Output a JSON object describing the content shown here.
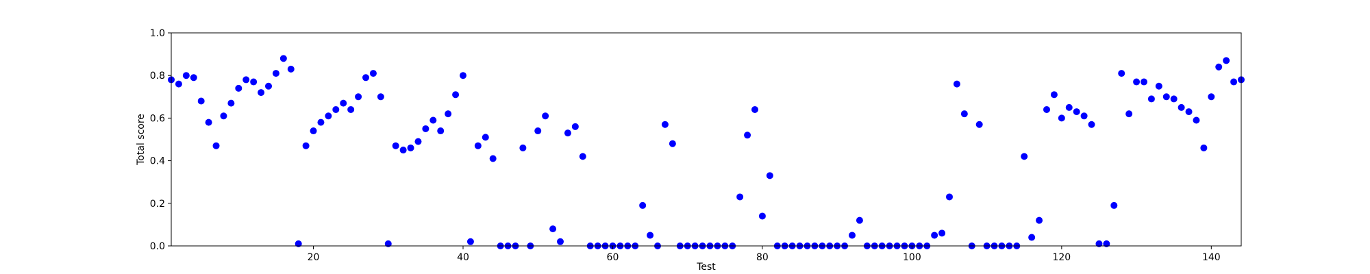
{
  "chart_data": {
    "type": "scatter",
    "xlabel": "Test",
    "ylabel": "Total score",
    "xlim": [
      1,
      144
    ],
    "ylim": [
      0.0,
      1.0
    ],
    "x_ticks": [
      20,
      40,
      60,
      80,
      100,
      120,
      140
    ],
    "x_tick_labels": [
      "20",
      "40",
      "60",
      "80",
      "100",
      "120",
      "140"
    ],
    "y_ticks": [
      0.0,
      0.2,
      0.4,
      0.6,
      0.8,
      1.0
    ],
    "y_tick_labels": [
      "0.0",
      "0.2",
      "0.4",
      "0.6",
      "0.8",
      "1.0"
    ],
    "grid": false,
    "marker_color": "#0000ff",
    "series": [
      {
        "x": [
          1,
          2,
          3,
          4,
          5,
          6,
          7,
          8,
          9,
          10,
          11,
          12,
          13,
          14,
          15,
          16,
          17,
          18,
          19,
          20,
          21,
          22,
          23,
          24,
          25,
          26,
          27,
          28,
          29,
          30,
          31,
          32,
          33,
          34,
          35,
          36,
          37,
          38,
          39,
          40,
          41,
          42,
          43,
          44,
          45,
          46,
          47,
          48,
          49,
          50,
          51,
          52,
          53,
          54,
          55,
          56,
          57,
          58,
          59,
          60,
          61,
          62,
          63,
          64,
          65,
          66,
          67,
          68,
          69,
          70,
          71,
          72,
          73,
          74,
          75,
          76,
          77,
          78,
          79,
          80,
          81,
          82,
          83,
          84,
          85,
          86,
          87,
          88,
          89,
          90,
          91,
          92,
          93,
          94,
          95,
          96,
          97,
          98,
          99,
          100,
          101,
          102,
          103,
          104,
          105,
          106,
          107,
          108,
          109,
          110,
          111,
          112,
          113,
          114,
          115,
          116,
          117,
          118,
          119,
          120,
          121,
          122,
          123,
          124,
          125,
          126,
          127,
          128,
          129,
          130,
          131,
          132,
          133,
          134,
          135,
          136,
          137,
          138,
          139,
          140,
          141,
          142,
          143,
          144
        ],
        "y": [
          0.78,
          0.76,
          0.8,
          0.79,
          0.68,
          0.58,
          0.47,
          0.61,
          0.67,
          0.74,
          0.78,
          0.77,
          0.72,
          0.75,
          0.81,
          0.88,
          0.83,
          0.01,
          0.47,
          0.54,
          0.58,
          0.61,
          0.64,
          0.67,
          0.64,
          0.7,
          0.79,
          0.81,
          0.7,
          0.01,
          0.47,
          0.45,
          0.46,
          0.49,
          0.55,
          0.59,
          0.54,
          0.62,
          0.71,
          0.8,
          0.02,
          0.47,
          0.51,
          0.41,
          0.0,
          0.0,
          0.0,
          0.46,
          0.0,
          0.54,
          0.61,
          0.08,
          0.02,
          0.53,
          0.56,
          0.42,
          0.0,
          0.0,
          0.0,
          0.0,
          0.0,
          0.0,
          0.0,
          0.19,
          0.05,
          0.0,
          0.57,
          0.48,
          0.0,
          0.0,
          0.0,
          0.0,
          0.0,
          0.0,
          0.0,
          0.0,
          0.23,
          0.52,
          0.64,
          0.14,
          0.33,
          0.0,
          0.0,
          0.0,
          0.0,
          0.0,
          0.0,
          0.0,
          0.0,
          0.0,
          0.0,
          0.05,
          0.12,
          0.0,
          0.0,
          0.0,
          0.0,
          0.0,
          0.0,
          0.0,
          0.0,
          0.0,
          0.05,
          0.06,
          0.23,
          0.76,
          0.62,
          0.0,
          0.57,
          0.0,
          0.0,
          0.0,
          0.0,
          0.0,
          0.42,
          0.04,
          0.12,
          0.64,
          0.71,
          0.6,
          0.65,
          0.63,
          0.61,
          0.57,
          0.01,
          0.01,
          0.19,
          0.81,
          0.62,
          0.77,
          0.77,
          0.69,
          0.75,
          0.7,
          0.69,
          0.65,
          0.63,
          0.59,
          0.46,
          0.7,
          0.84,
          0.87,
          0.77,
          0.78
        ]
      }
    ]
  }
}
